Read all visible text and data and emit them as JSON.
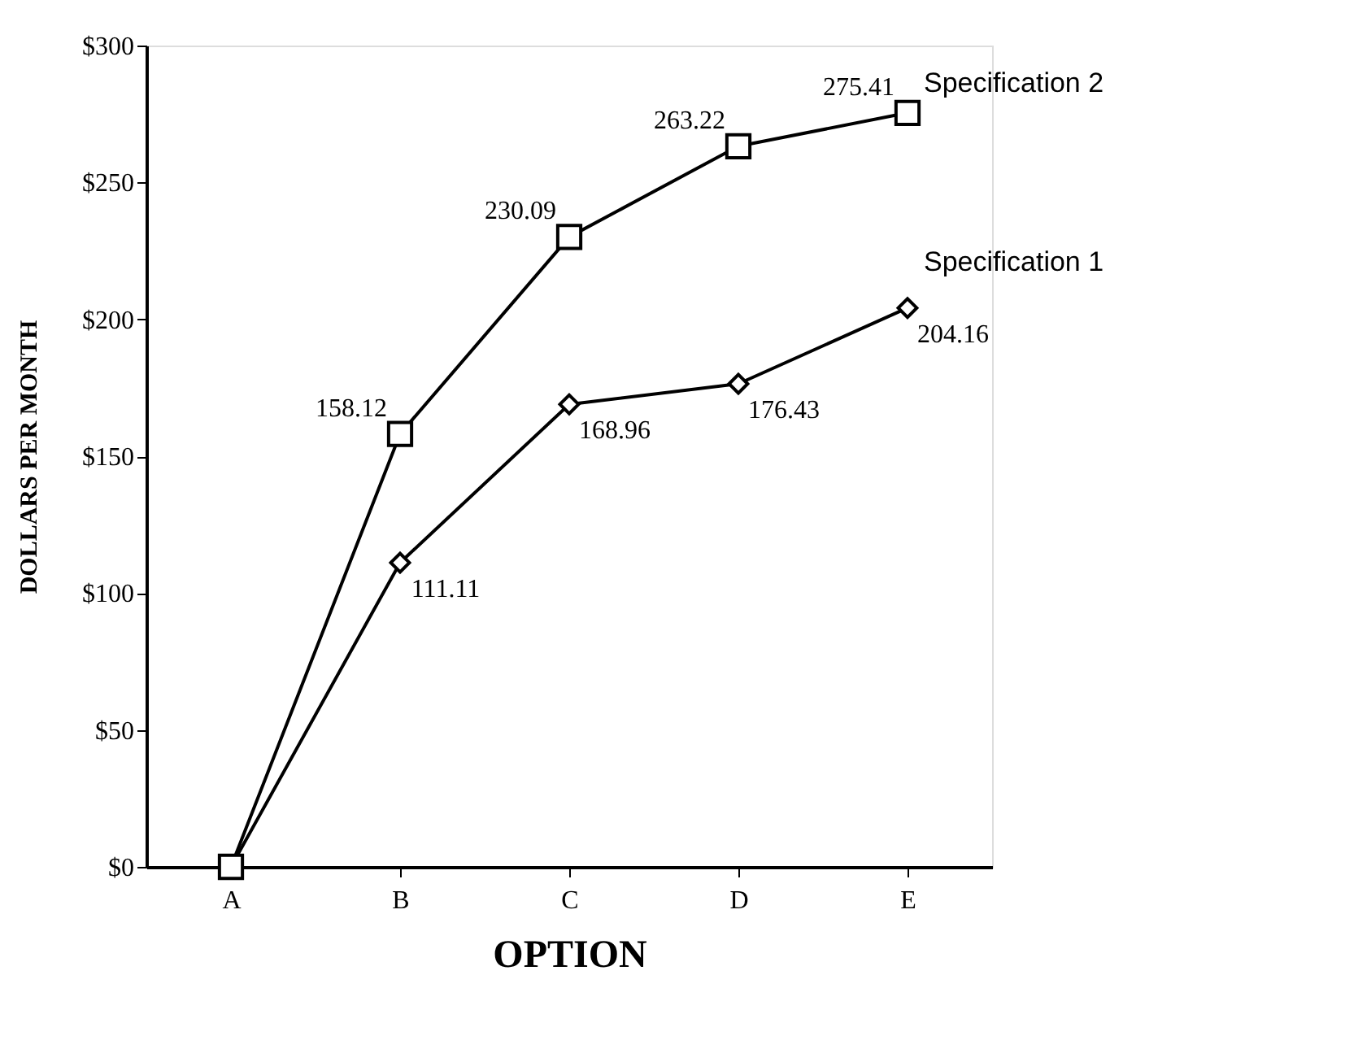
{
  "chart_data": {
    "type": "line",
    "xlabel": "OPTION",
    "ylabel": "DOLLARS PER MONTH",
    "categories": [
      "A",
      "B",
      "C",
      "D",
      "E"
    ],
    "series": [
      {
        "name": "Specification 2",
        "color": "#000000",
        "marker": "square",
        "values": [
          0,
          158.12,
          230.09,
          263.22,
          275.41
        ],
        "value_labels": [
          null,
          "158.12",
          "230.09",
          "263.22",
          "275.41"
        ]
      },
      {
        "name": "Specification 1",
        "color": "#000000",
        "marker": "diamond",
        "values": [
          0,
          111.11,
          168.96,
          176.43,
          204.16
        ],
        "value_labels": [
          null,
          "111.11",
          "168.96",
          "176.43",
          "204.16"
        ]
      }
    ],
    "ylim": [
      0,
      300
    ],
    "yticks": [
      {
        "value": 0,
        "label": "$0"
      },
      {
        "value": 50,
        "label": "$50"
      },
      {
        "value": 100,
        "label": "$100"
      },
      {
        "value": 150,
        "label": "$150"
      },
      {
        "value": 200,
        "label": "$200"
      },
      {
        "value": 250,
        "label": "$250"
      },
      {
        "value": 300,
        "label": "$300"
      }
    ],
    "grid": false,
    "legend": false,
    "line_style": "solid"
  }
}
